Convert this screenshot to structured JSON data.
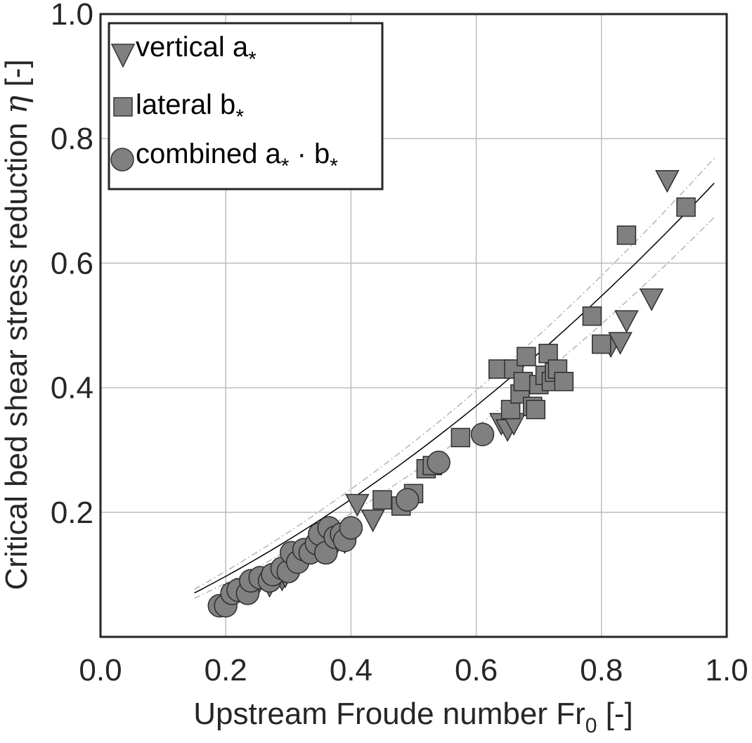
{
  "chart_data": {
    "type": "scatter",
    "xlabel": "Upstream Froude number Fr",
    "xlabel_sub": "0",
    "xlabel_suffix": " [-]",
    "ylabel": "Critical bed shear stress reduction ",
    "ylabel_symbol": "η",
    "ylabel_suffix": " [-]",
    "xlim": [
      0.0,
      1.0
    ],
    "ylim": [
      0.0,
      1.0
    ],
    "xticks": [
      0.0,
      0.2,
      0.4,
      0.6,
      0.8,
      1.0
    ],
    "xtick_labels": [
      "0.0",
      "0.2",
      "0.4",
      "0.6",
      "0.8",
      "1.0"
    ],
    "yticks": [
      0.2,
      0.4,
      0.6,
      0.8,
      1.0
    ],
    "ytick_labels": [
      "0.2",
      "0.4",
      "0.6",
      "0.8",
      "1.0"
    ],
    "grid": true,
    "legend_position": "top-left",
    "marker_color": "#808080",
    "series": [
      {
        "name": "vertical a",
        "name_sub": "*",
        "marker": "triangle-down",
        "points": [
          [
            0.215,
            0.07
          ],
          [
            0.235,
            0.08
          ],
          [
            0.25,
            0.085
          ],
          [
            0.27,
            0.085
          ],
          [
            0.29,
            0.095
          ],
          [
            0.295,
            0.1
          ],
          [
            0.31,
            0.125
          ],
          [
            0.33,
            0.135
          ],
          [
            0.35,
            0.14
          ],
          [
            0.37,
            0.14
          ],
          [
            0.39,
            0.155
          ],
          [
            0.41,
            0.215
          ],
          [
            0.435,
            0.19
          ],
          [
            0.64,
            0.345
          ],
          [
            0.65,
            0.335
          ],
          [
            0.66,
            0.345
          ],
          [
            0.815,
            0.47
          ],
          [
            0.83,
            0.475
          ],
          [
            0.84,
            0.51
          ],
          [
            0.88,
            0.545
          ],
          [
            0.905,
            0.735
          ]
        ]
      },
      {
        "name": "lateral b",
        "name_sub": "*",
        "marker": "square",
        "points": [
          [
            0.45,
            0.22
          ],
          [
            0.48,
            0.21
          ],
          [
            0.5,
            0.23
          ],
          [
            0.52,
            0.27
          ],
          [
            0.53,
            0.275
          ],
          [
            0.575,
            0.32
          ],
          [
            0.635,
            0.43
          ],
          [
            0.655,
            0.365
          ],
          [
            0.66,
            0.43
          ],
          [
            0.67,
            0.39
          ],
          [
            0.675,
            0.41
          ],
          [
            0.68,
            0.45
          ],
          [
            0.69,
            0.37
          ],
          [
            0.695,
            0.365
          ],
          [
            0.7,
            0.405
          ],
          [
            0.71,
            0.42
          ],
          [
            0.715,
            0.455
          ],
          [
            0.72,
            0.41
          ],
          [
            0.725,
            0.425
          ],
          [
            0.73,
            0.43
          ],
          [
            0.74,
            0.41
          ],
          [
            0.785,
            0.515
          ],
          [
            0.8,
            0.47
          ],
          [
            0.84,
            0.645
          ],
          [
            0.935,
            0.69
          ]
        ]
      },
      {
        "name": "combined a",
        "name_sub": "*",
        "name_mid": " · b",
        "name_sub2": "*",
        "marker": "circle",
        "points": [
          [
            0.19,
            0.05
          ],
          [
            0.2,
            0.05
          ],
          [
            0.21,
            0.07
          ],
          [
            0.22,
            0.075
          ],
          [
            0.235,
            0.07
          ],
          [
            0.24,
            0.09
          ],
          [
            0.255,
            0.095
          ],
          [
            0.27,
            0.09
          ],
          [
            0.275,
            0.1
          ],
          [
            0.29,
            0.11
          ],
          [
            0.3,
            0.105
          ],
          [
            0.305,
            0.135
          ],
          [
            0.315,
            0.12
          ],
          [
            0.325,
            0.14
          ],
          [
            0.335,
            0.135
          ],
          [
            0.345,
            0.15
          ],
          [
            0.35,
            0.165
          ],
          [
            0.36,
            0.135
          ],
          [
            0.365,
            0.175
          ],
          [
            0.375,
            0.16
          ],
          [
            0.385,
            0.165
          ],
          [
            0.39,
            0.155
          ],
          [
            0.4,
            0.175
          ],
          [
            0.49,
            0.22
          ],
          [
            0.54,
            0.28
          ],
          [
            0.61,
            0.325
          ]
        ]
      }
    ],
    "fit": {
      "style": "solid",
      "x_range": [
        0.15,
        0.98
      ],
      "coefficients": [
        0.0,
        0.42,
        0.33
      ]
    },
    "bounds": {
      "style": "dash-dot",
      "color": "#b5b5b5",
      "x_range": [
        0.15,
        0.98
      ],
      "offsets": [
        0.04,
        -0.055
      ]
    }
  }
}
